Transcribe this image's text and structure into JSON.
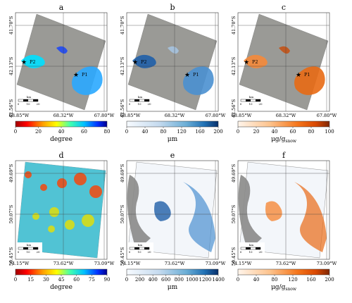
{
  "panels": [
    {
      "letter": "a",
      "lat": [
        "41.70°S",
        "42.13°S",
        "42.56°S"
      ],
      "lon": [
        "68.85°W",
        "68.32°W",
        "67.80°W"
      ],
      "points": [
        "P2",
        "P1"
      ],
      "scale_unit": "km",
      "scale_ticks": [
        "0",
        "10",
        "20"
      ],
      "cbar_ticks": [
        "0",
        "20",
        "40",
        "60",
        "80"
      ],
      "unit": "degree",
      "unit_sub": "",
      "cmap": "jet",
      "image": "snow-angle"
    },
    {
      "letter": "b",
      "lat": [
        "41.70°S",
        "42.13°S",
        "42.56°S"
      ],
      "lon": [
        "68.85°W",
        "68.32°W",
        "67.80°W"
      ],
      "points": [
        "P2",
        "P1"
      ],
      "scale_unit": "km",
      "scale_ticks": [
        "0",
        "10",
        "20"
      ],
      "cbar_ticks": [
        "0",
        "40",
        "80",
        "120",
        "160",
        "200"
      ],
      "unit": "μm",
      "unit_sub": "",
      "cmap": "blues",
      "image": "snow-blue"
    },
    {
      "letter": "c",
      "lat": [
        "41.70°S",
        "42.13°S",
        "42.56°S"
      ],
      "lon": [
        "68.85°W",
        "68.32°W",
        "67.80°W"
      ],
      "points": [
        "P2",
        "P1"
      ],
      "scale_unit": "km",
      "scale_ticks": [
        "0",
        "10",
        "20"
      ],
      "cbar_ticks": [
        "0",
        "20",
        "40",
        "60",
        "80",
        "100"
      ],
      "unit": "μg/g",
      "unit_sub": "snow",
      "cmap": "oranges",
      "image": "snow-orange"
    },
    {
      "letter": "d",
      "lat": [
        "49.69°S",
        "50.07°S",
        "50.45°S"
      ],
      "lon": [
        "74.15°W",
        "73.62°W",
        "73.09°W"
      ],
      "points": [],
      "scale_unit": "km",
      "scale_ticks": [
        "0",
        "10",
        "20"
      ],
      "cbar_ticks": [
        "0",
        "15",
        "30",
        "45",
        "60",
        "75",
        "90"
      ],
      "unit": "degree",
      "unit_sub": "",
      "cmap": "jet",
      "image": "ice-angle"
    },
    {
      "letter": "e",
      "lat": [
        "49.69°S",
        "50.07°S",
        "50.45°S"
      ],
      "lon": [
        "74.15°W",
        "73.62°W",
        "73.09°W"
      ],
      "points": [],
      "scale_unit": "km",
      "scale_ticks": [
        "0",
        "10",
        "20"
      ],
      "cbar_ticks": [
        "0",
        "200",
        "400",
        "600",
        "800",
        "1000",
        "1200",
        "1400"
      ],
      "unit": "μm",
      "unit_sub": "",
      "cmap": "blues",
      "image": "ice-blue"
    },
    {
      "letter": "f",
      "lat": [
        "49.69°S",
        "50.07°S",
        "50.45°S"
      ],
      "lon": [
        "74.15°W",
        "73.62°W",
        "73.09°W"
      ],
      "points": [],
      "scale_unit": "km",
      "scale_ticks": [
        "0",
        "10",
        "20"
      ],
      "cbar_ticks": [
        "0",
        "40",
        "80",
        "120",
        "160",
        "200"
      ],
      "unit": "μg/g",
      "unit_sub": "snow",
      "cmap": "oranges",
      "image": "ice-orange"
    }
  ]
}
